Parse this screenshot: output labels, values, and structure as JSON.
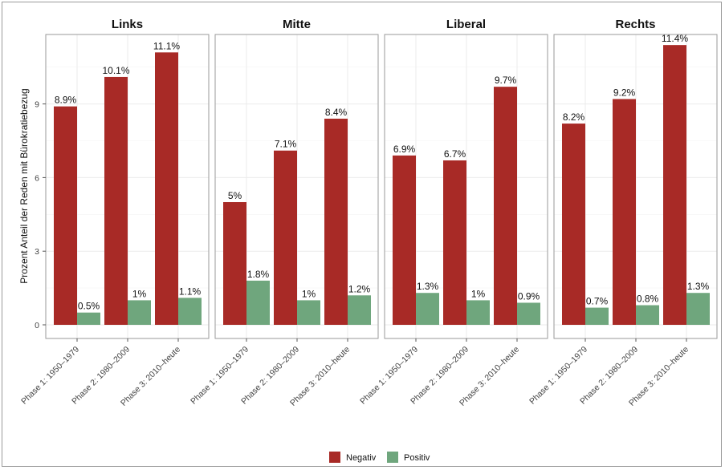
{
  "chart_data": {
    "type": "bar",
    "ylabel": "Prozent Anteil der Reden mit Bürokratiebezug",
    "ylim": [
      0,
      12
    ],
    "yticks": [
      0,
      3,
      6,
      9
    ],
    "grid": true,
    "legend_position": "bottom",
    "categories": [
      "Phase 1: 1950–1979",
      "Phase 2: 1980–2009",
      "Phase 3: 2010–heute"
    ],
    "series_meta": [
      {
        "name": "Negativ",
        "color": "#a82a26"
      },
      {
        "name": "Positiv",
        "color": "#6fa67d"
      }
    ],
    "facets": [
      {
        "title": "Links",
        "series": [
          {
            "name": "Negativ",
            "values": [
              8.9,
              10.1,
              11.1
            ],
            "labels": [
              "8.9%",
              "10.1%",
              "11.1%"
            ]
          },
          {
            "name": "Positiv",
            "values": [
              0.5,
              1.0,
              1.1
            ],
            "labels": [
              "0.5%",
              "1%",
              "1.1%"
            ]
          }
        ]
      },
      {
        "title": "Mitte",
        "series": [
          {
            "name": "Negativ",
            "values": [
              5.0,
              7.1,
              8.4
            ],
            "labels": [
              "5%",
              "7.1%",
              "8.4%"
            ]
          },
          {
            "name": "Positiv",
            "values": [
              1.8,
              1.0,
              1.2
            ],
            "labels": [
              "1.8%",
              "1%",
              "1.2%"
            ]
          }
        ]
      },
      {
        "title": "Liberal",
        "series": [
          {
            "name": "Negativ",
            "values": [
              6.9,
              6.7,
              9.7
            ],
            "labels": [
              "6.9%",
              "6.7%",
              "9.7%"
            ]
          },
          {
            "name": "Positiv",
            "values": [
              1.3,
              1.0,
              0.9
            ],
            "labels": [
              "1.3%",
              "1%",
              "0.9%"
            ]
          }
        ]
      },
      {
        "title": "Rechts",
        "series": [
          {
            "name": "Negativ",
            "values": [
              8.2,
              9.2,
              11.4
            ],
            "labels": [
              "8.2%",
              "9.2%",
              "11.4%"
            ]
          },
          {
            "name": "Positiv",
            "values": [
              0.7,
              0.8,
              1.3
            ],
            "labels": [
              "0.7%",
              "0.8%",
              "1.3%"
            ]
          }
        ]
      }
    ]
  }
}
